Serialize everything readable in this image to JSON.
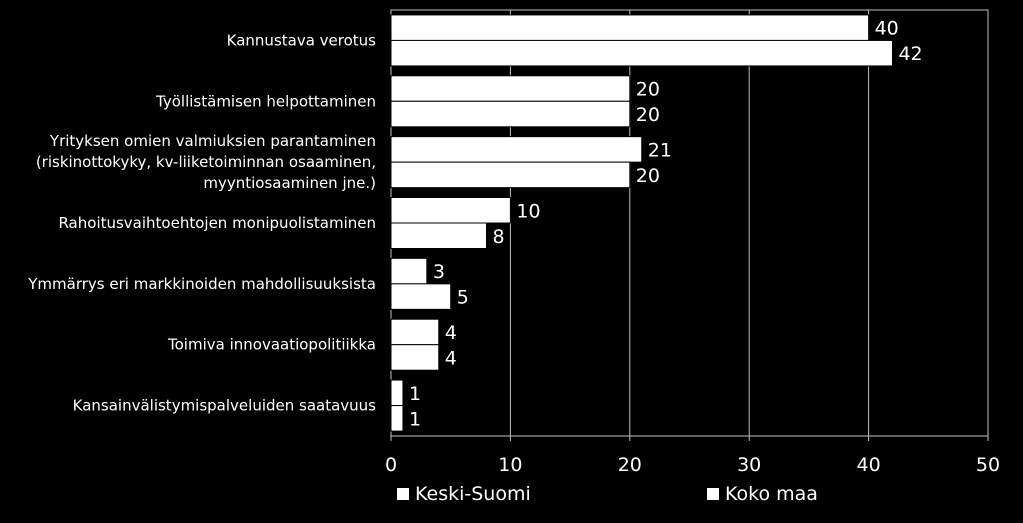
{
  "chart_data": {
    "type": "bar",
    "orientation": "horizontal",
    "categories": [
      "Kannustava verotus",
      "Työllistämisen helpottaminen",
      "Yrityksen omien valmiuksien parantaminen (riskinottokyky, kv-liiketoiminnan osaaminen, myyntiosaaminen jne.)",
      "Rahoitusvaihtoehtojen monipuolistaminen",
      "Ymmärrys eri markkinoiden mahdollisuuksista",
      "Toimiva innovaatiopolitiikka",
      "Kansainvälistymispalveluiden saatavuus"
    ],
    "category_lines": [
      [
        "Kannustava verotus"
      ],
      [
        "Työllistämisen helpottaminen"
      ],
      [
        "Yrityksen omien valmiuksien parantaminen",
        "(riskinottokyky, kv-liiketoiminnan osaaminen,",
        "myyntiosaaminen jne.)"
      ],
      [
        "Rahoitusvaihtoehtojen monipuolistaminen"
      ],
      [
        "Ymmärrys eri markkinoiden mahdollisuuksista"
      ],
      [
        "Toimiva innovaatiopolitiikka"
      ],
      [
        "Kansainvälistymispalveluiden saatavuus"
      ]
    ],
    "series": [
      {
        "name": "Keski-Suomi",
        "values": [
          40,
          20,
          21,
          10,
          3,
          4,
          1
        ]
      },
      {
        "name": "Koko maa",
        "values": [
          42,
          20,
          20,
          8,
          5,
          4,
          1
        ]
      }
    ],
    "xlim": [
      0,
      50
    ],
    "xticks": [
      0,
      10,
      20,
      30,
      40,
      50
    ],
    "grid": true,
    "legend_position": "bottom",
    "colors": {
      "background": "#000000",
      "bar_fill": "#ffffff",
      "bar_stroke": "#000000",
      "grid": "#bfbfbf",
      "text": "#ffffff"
    }
  }
}
